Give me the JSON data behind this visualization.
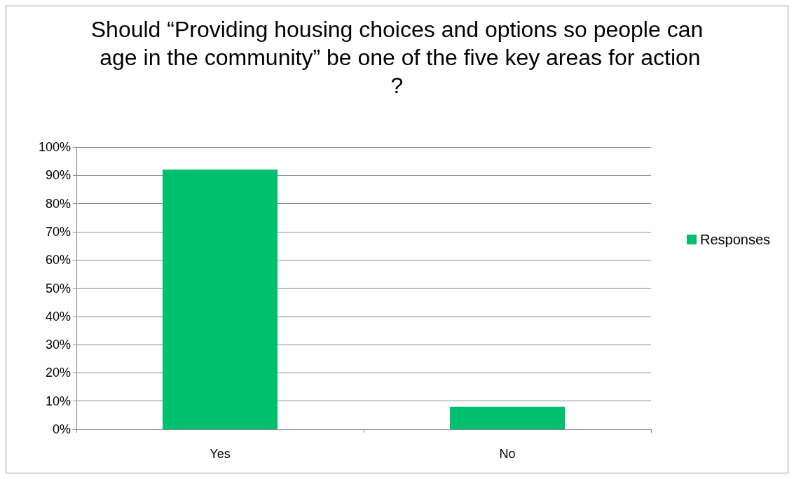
{
  "chart_data": {
    "type": "bar",
    "title": "Should “Providing housing choices and options so people can age in the community” be one of the five key areas for action?",
    "categories": [
      "Yes",
      "No"
    ],
    "series": [
      {
        "name": "Responses",
        "color": "#00bf6f",
        "values": [
          92,
          8
        ]
      }
    ],
    "ylim": [
      0,
      100
    ],
    "yticks": [
      {
        "value": 0,
        "label": "0%"
      },
      {
        "value": 10,
        "label": "10%"
      },
      {
        "value": 20,
        "label": "20%"
      },
      {
        "value": 30,
        "label": "30%"
      },
      {
        "value": 40,
        "label": "40%"
      },
      {
        "value": 50,
        "label": "50%"
      },
      {
        "value": 60,
        "label": "60%"
      },
      {
        "value": 70,
        "label": "70%"
      },
      {
        "value": 80,
        "label": "80%"
      },
      {
        "value": 90,
        "label": "90%"
      },
      {
        "value": 100,
        "label": "100%"
      }
    ],
    "grid": "y",
    "legend": "right"
  }
}
